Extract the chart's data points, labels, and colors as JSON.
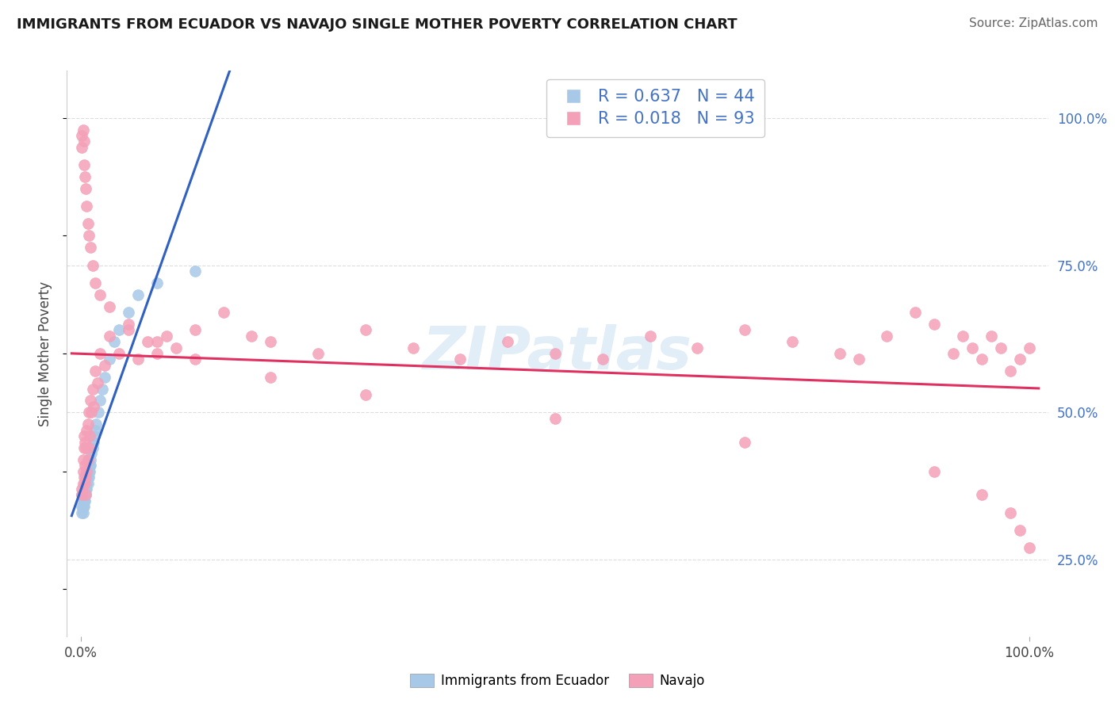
{
  "title": "IMMIGRANTS FROM ECUADOR VS NAVAJO SINGLE MOTHER POVERTY CORRELATION CHART",
  "source": "Source: ZipAtlas.com",
  "ylabel": "Single Mother Poverty",
  "legend_labels": [
    "Immigrants from Ecuador",
    "Navajo"
  ],
  "blue_R": 0.637,
  "blue_N": 44,
  "pink_R": 0.018,
  "pink_N": 93,
  "blue_color": "#a8c8e8",
  "pink_color": "#f4a0b8",
  "trend_blue": "#3060c0",
  "trend_pink": "#e03060",
  "watermark": "ZIPatlas",
  "blue_scatter_x": [
    0.001,
    0.001,
    0.001,
    0.002,
    0.002,
    0.002,
    0.002,
    0.003,
    0.003,
    0.003,
    0.003,
    0.004,
    0.004,
    0.004,
    0.005,
    0.005,
    0.005,
    0.006,
    0.006,
    0.007,
    0.007,
    0.008,
    0.008,
    0.009,
    0.009,
    0.01,
    0.01,
    0.011,
    0.012,
    0.013,
    0.014,
    0.015,
    0.016,
    0.018,
    0.02,
    0.022,
    0.025,
    0.03,
    0.035,
    0.04,
    0.05,
    0.06,
    0.08,
    0.12
  ],
  "blue_scatter_y": [
    0.36,
    0.34,
    0.33,
    0.36,
    0.35,
    0.34,
    0.33,
    0.36,
    0.35,
    0.37,
    0.34,
    0.37,
    0.36,
    0.35,
    0.38,
    0.37,
    0.36,
    0.38,
    0.37,
    0.39,
    0.38,
    0.4,
    0.39,
    0.41,
    0.4,
    0.42,
    0.41,
    0.43,
    0.44,
    0.45,
    0.46,
    0.47,
    0.48,
    0.5,
    0.52,
    0.54,
    0.56,
    0.59,
    0.62,
    0.64,
    0.67,
    0.7,
    0.72,
    0.74
  ],
  "pink_scatter_x": [
    0.001,
    0.001,
    0.002,
    0.002,
    0.002,
    0.003,
    0.003,
    0.003,
    0.004,
    0.004,
    0.004,
    0.005,
    0.005,
    0.005,
    0.006,
    0.006,
    0.007,
    0.007,
    0.008,
    0.008,
    0.009,
    0.01,
    0.011,
    0.012,
    0.013,
    0.015,
    0.017,
    0.02,
    0.025,
    0.03,
    0.04,
    0.05,
    0.06,
    0.07,
    0.08,
    0.09,
    0.1,
    0.12,
    0.15,
    0.18,
    0.2,
    0.25,
    0.3,
    0.35,
    0.4,
    0.45,
    0.5,
    0.55,
    0.6,
    0.65,
    0.7,
    0.75,
    0.8,
    0.82,
    0.85,
    0.88,
    0.9,
    0.92,
    0.93,
    0.94,
    0.95,
    0.96,
    0.97,
    0.98,
    0.99,
    1.0,
    0.001,
    0.001,
    0.002,
    0.003,
    0.003,
    0.004,
    0.005,
    0.006,
    0.007,
    0.008,
    0.01,
    0.012,
    0.015,
    0.02,
    0.03,
    0.05,
    0.08,
    0.12,
    0.2,
    0.3,
    0.5,
    0.7,
    0.9,
    0.95,
    0.98,
    0.99,
    1.0
  ],
  "pink_scatter_y": [
    0.37,
    0.36,
    0.38,
    0.4,
    0.42,
    0.39,
    0.44,
    0.46,
    0.38,
    0.41,
    0.45,
    0.36,
    0.39,
    0.44,
    0.4,
    0.47,
    0.42,
    0.48,
    0.44,
    0.5,
    0.46,
    0.52,
    0.5,
    0.54,
    0.51,
    0.57,
    0.55,
    0.6,
    0.58,
    0.63,
    0.6,
    0.64,
    0.59,
    0.62,
    0.6,
    0.63,
    0.61,
    0.64,
    0.67,
    0.63,
    0.62,
    0.6,
    0.64,
    0.61,
    0.59,
    0.62,
    0.6,
    0.59,
    0.63,
    0.61,
    0.64,
    0.62,
    0.6,
    0.59,
    0.63,
    0.67,
    0.65,
    0.6,
    0.63,
    0.61,
    0.59,
    0.63,
    0.61,
    0.57,
    0.59,
    0.61,
    0.97,
    0.95,
    0.98,
    0.92,
    0.96,
    0.9,
    0.88,
    0.85,
    0.82,
    0.8,
    0.78,
    0.75,
    0.72,
    0.7,
    0.68,
    0.65,
    0.62,
    0.59,
    0.56,
    0.53,
    0.49,
    0.45,
    0.4,
    0.36,
    0.33,
    0.3,
    0.27
  ]
}
